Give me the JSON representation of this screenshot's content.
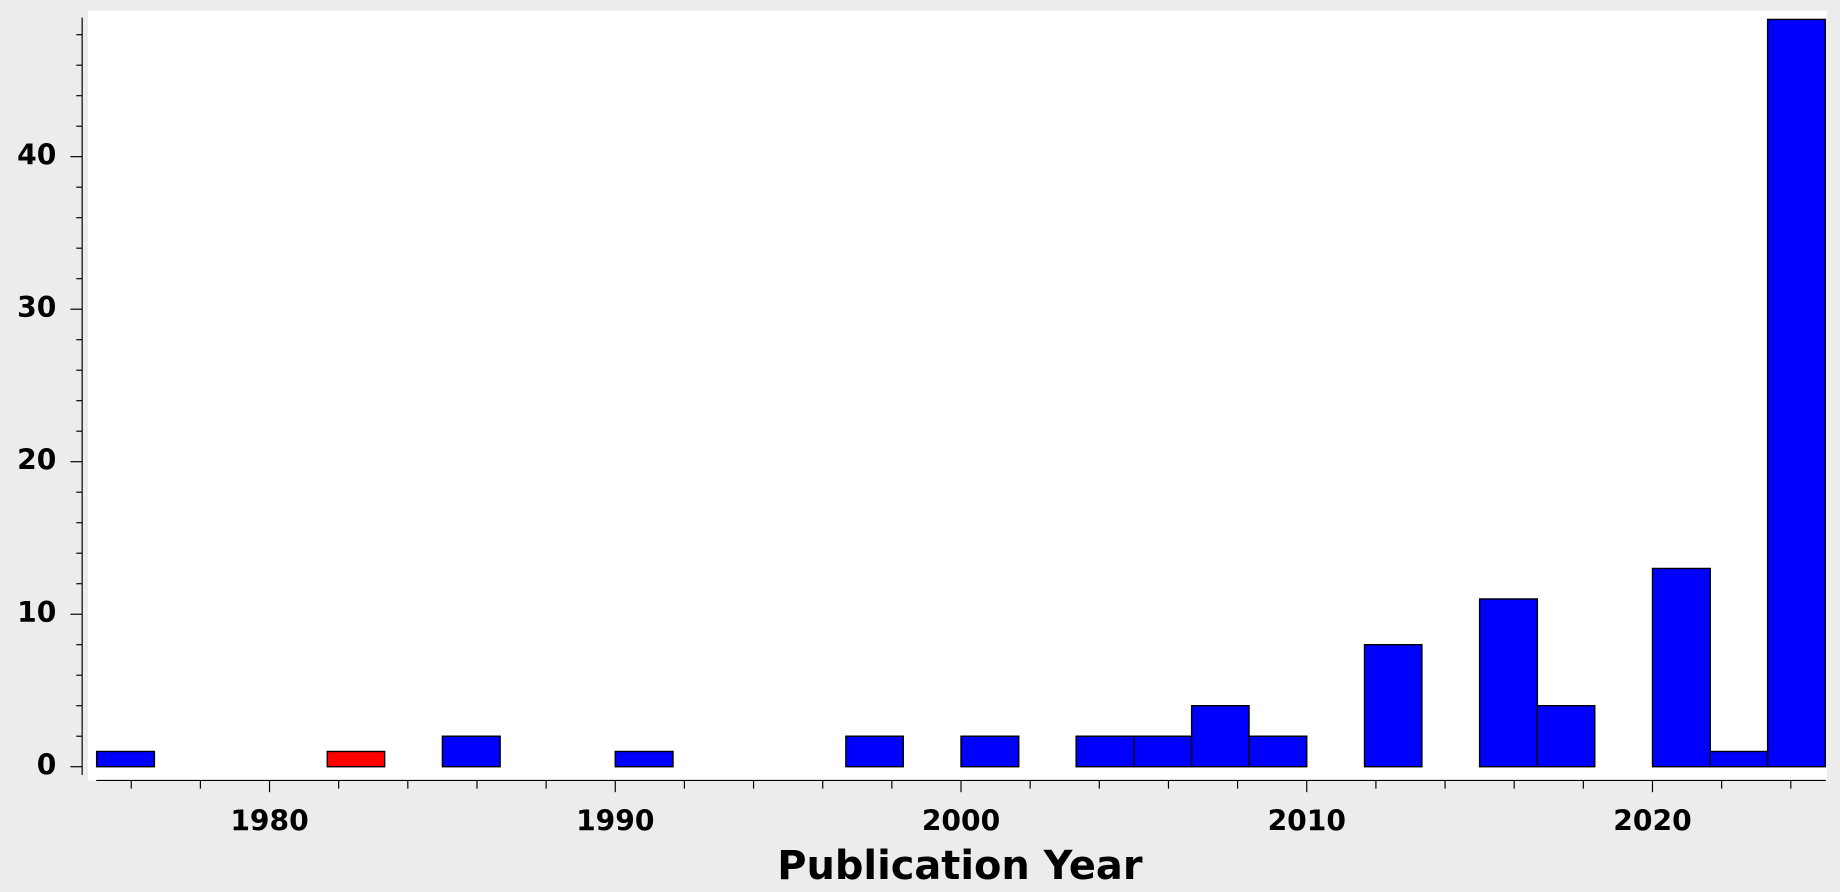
{
  "chart_data": {
    "type": "histogram",
    "x_label": "Publication Year",
    "bins": [
      1975,
      1976.67,
      1978.33,
      1980,
      1981.67,
      1983.33,
      1985,
      1986.67,
      1988.33,
      1990,
      1991.67,
      1993.33,
      1995,
      1996.67,
      1998.33,
      2000,
      2001.67,
      2003.33,
      2005,
      2006.67,
      2008.33,
      2010,
      2011.67,
      2013.33,
      2015,
      2016.67,
      2018.33,
      2020,
      2021.67,
      2023.33,
      2025
    ],
    "values": [
      1,
      0,
      0,
      0,
      1,
      0,
      2,
      0,
      0,
      1,
      0,
      0,
      0,
      2,
      0,
      2,
      0,
      2,
      2,
      4,
      2,
      0,
      8,
      0,
      11,
      4,
      0,
      13,
      1,
      49
    ],
    "colors": [
      "#0000ff",
      "#0000ff",
      "#0000ff",
      "#0000ff",
      "#ff0000",
      "#0000ff",
      "#0000ff",
      "#0000ff",
      "#0000ff",
      "#0000ff",
      "#0000ff",
      "#0000ff",
      "#0000ff",
      "#0000ff",
      "#0000ff",
      "#0000ff",
      "#0000ff",
      "#0000ff",
      "#0000ff",
      "#0000ff",
      "#0000ff",
      "#0000ff",
      "#0000ff",
      "#0000ff",
      "#0000ff",
      "#0000ff",
      "#0000ff",
      "#0000ff",
      "#0000ff",
      "#0000ff"
    ],
    "xlim": [
      1974.75,
      2025.05
    ],
    "ylim": [
      -0.9,
      49.5
    ],
    "xticks": [
      1980,
      1990,
      2000,
      2010,
      2020
    ],
    "yticks": [
      0,
      10,
      20,
      30,
      40
    ],
    "xminor_ticks": [
      1976,
      1978,
      1982,
      1984,
      1986,
      1988,
      1992,
      1994,
      1996,
      1998,
      2002,
      2004,
      2006,
      2008,
      2012,
      2014,
      2016,
      2018,
      2022,
      2024
    ],
    "yminor_ticks": [
      2,
      4,
      6,
      8,
      12,
      14,
      16,
      18,
      22,
      24,
      26,
      28,
      32,
      34,
      36,
      38,
      42,
      44,
      46,
      48
    ],
    "grid": false
  }
}
